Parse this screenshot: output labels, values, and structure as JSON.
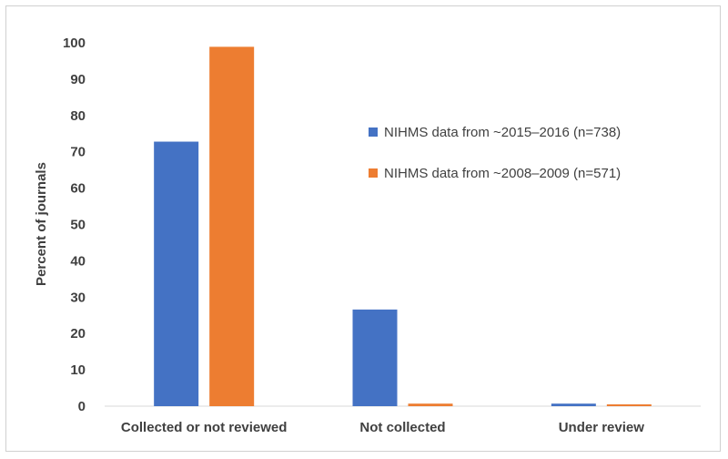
{
  "chart_data": {
    "type": "bar",
    "title": "",
    "xlabel": "",
    "ylabel": "Percent of journals",
    "ylim": [
      0,
      100
    ],
    "yticks": [
      0,
      10,
      20,
      30,
      40,
      50,
      60,
      70,
      80,
      90,
      100
    ],
    "categories": [
      "Collected or not reviewed",
      "Not collected",
      "Under review"
    ],
    "series": [
      {
        "name": "NIHMS data from ~2015–2016 (n=738)",
        "color": "#4472c4",
        "values": [
          72.8,
          26.6,
          0.7
        ]
      },
      {
        "name": "NIHMS data from ~2008–2009 (n=571)",
        "color": "#ed7d31",
        "values": [
          98.9,
          0.7,
          0.5
        ]
      }
    ],
    "grid": false,
    "legend_position": "right"
  }
}
